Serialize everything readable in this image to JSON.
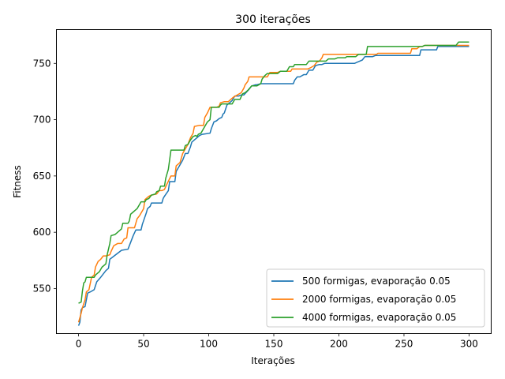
{
  "chart_data": {
    "type": "line",
    "title": "300 iterações",
    "xlabel": "Iterações",
    "ylabel": "Fitness",
    "xlim": [
      -17,
      317
    ],
    "ylim": [
      510,
      780
    ],
    "xticks": [
      0,
      50,
      100,
      150,
      200,
      250,
      300
    ],
    "yticks": [
      550,
      600,
      650,
      700,
      750
    ],
    "grid": false,
    "legend_position": "lower-right",
    "series": [
      {
        "name": "500 formigas, evaporação 0.05",
        "color": "#1f77b4",
        "points": [
          [
            0,
            517
          ],
          [
            1,
            520
          ],
          [
            2,
            531
          ],
          [
            3,
            533
          ],
          [
            5,
            534
          ],
          [
            6,
            540
          ],
          [
            7,
            546
          ],
          [
            9,
            547
          ],
          [
            12,
            549
          ],
          [
            14,
            556
          ],
          [
            17,
            560
          ],
          [
            19,
            563
          ],
          [
            21,
            566
          ],
          [
            23,
            568
          ],
          [
            24,
            576
          ],
          [
            33,
            584
          ],
          [
            38,
            585
          ],
          [
            42,
            597
          ],
          [
            44,
            602
          ],
          [
            48,
            602
          ],
          [
            49,
            607
          ],
          [
            52,
            617
          ],
          [
            53,
            621
          ],
          [
            55,
            623
          ],
          [
            56,
            626
          ],
          [
            64,
            626
          ],
          [
            65,
            630
          ],
          [
            66,
            632
          ],
          [
            69,
            637
          ],
          [
            70,
            645
          ],
          [
            74,
            645
          ],
          [
            75,
            654
          ],
          [
            78,
            660
          ],
          [
            80,
            664
          ],
          [
            82,
            670
          ],
          [
            84,
            670
          ],
          [
            86,
            676
          ],
          [
            87,
            680
          ],
          [
            89,
            682
          ],
          [
            91,
            684
          ],
          [
            93,
            686
          ],
          [
            95,
            687
          ],
          [
            101,
            688
          ],
          [
            102,
            692
          ],
          [
            104,
            698
          ],
          [
            106,
            699
          ],
          [
            108,
            701
          ],
          [
            110,
            702
          ],
          [
            111,
            705
          ],
          [
            112,
            706
          ],
          [
            114,
            713
          ],
          [
            116,
            715
          ],
          [
            118,
            717
          ],
          [
            120,
            721
          ],
          [
            123,
            721
          ],
          [
            125,
            722
          ],
          [
            127,
            722
          ],
          [
            131,
            727
          ],
          [
            133,
            730
          ],
          [
            136,
            731
          ],
          [
            137,
            731
          ],
          [
            140,
            732
          ],
          [
            165,
            732
          ],
          [
            166,
            735
          ],
          [
            168,
            738
          ],
          [
            170,
            738
          ],
          [
            173,
            740
          ],
          [
            175,
            740
          ],
          [
            177,
            744
          ],
          [
            180,
            744
          ],
          [
            182,
            748
          ],
          [
            185,
            749
          ],
          [
            187,
            749
          ],
          [
            189,
            750
          ],
          [
            212,
            750
          ],
          [
            214,
            751
          ],
          [
            216,
            752
          ],
          [
            218,
            753
          ],
          [
            220,
            756
          ],
          [
            226,
            756
          ],
          [
            228,
            757
          ],
          [
            262,
            757
          ],
          [
            263,
            762
          ],
          [
            275,
            762
          ],
          [
            276,
            765
          ],
          [
            293,
            765
          ],
          [
            295,
            765
          ],
          [
            300,
            765
          ]
        ]
      },
      {
        "name": "2000 formigas, evaporação 0.05",
        "color": "#ff7f0e",
        "points": [
          [
            0,
            520
          ],
          [
            1,
            524
          ],
          [
            2,
            528
          ],
          [
            3,
            533
          ],
          [
            5,
            540
          ],
          [
            6,
            547
          ],
          [
            8,
            549
          ],
          [
            10,
            560
          ],
          [
            12,
            562
          ],
          [
            13,
            569
          ],
          [
            15,
            574
          ],
          [
            17,
            576
          ],
          [
            19,
            579
          ],
          [
            21,
            579
          ],
          [
            24,
            580
          ],
          [
            25,
            583
          ],
          [
            27,
            588
          ],
          [
            30,
            590
          ],
          [
            33,
            590
          ],
          [
            35,
            594
          ],
          [
            37,
            595
          ],
          [
            38,
            604
          ],
          [
            43,
            604
          ],
          [
            45,
            612
          ],
          [
            47,
            615
          ],
          [
            50,
            621
          ],
          [
            51,
            629
          ],
          [
            54,
            632
          ],
          [
            56,
            633
          ],
          [
            60,
            634
          ],
          [
            62,
            637
          ],
          [
            64,
            637
          ],
          [
            66,
            638
          ],
          [
            68,
            643
          ],
          [
            71,
            650
          ],
          [
            74,
            650
          ],
          [
            75,
            659
          ],
          [
            78,
            662
          ],
          [
            80,
            670
          ],
          [
            84,
            678
          ],
          [
            86,
            684
          ],
          [
            88,
            688
          ],
          [
            89,
            694
          ],
          [
            93,
            695
          ],
          [
            96,
            695
          ],
          [
            97,
            702
          ],
          [
            99,
            706
          ],
          [
            101,
            711
          ],
          [
            106,
            711
          ],
          [
            108,
            712
          ],
          [
            109,
            715
          ],
          [
            112,
            716
          ],
          [
            115,
            716
          ],
          [
            118,
            719
          ],
          [
            119,
            720
          ],
          [
            125,
            724
          ],
          [
            127,
            728
          ],
          [
            128,
            731
          ],
          [
            130,
            734
          ],
          [
            131,
            738
          ],
          [
            145,
            738
          ],
          [
            147,
            742
          ],
          [
            153,
            742
          ],
          [
            155,
            743
          ],
          [
            163,
            743
          ],
          [
            164,
            745
          ],
          [
            176,
            745
          ],
          [
            178,
            746
          ],
          [
            181,
            748
          ],
          [
            183,
            751
          ],
          [
            185,
            752
          ],
          [
            187,
            755
          ],
          [
            188,
            758
          ],
          [
            229,
            758
          ],
          [
            230,
            759
          ],
          [
            255,
            759
          ],
          [
            256,
            763
          ],
          [
            260,
            763
          ],
          [
            262,
            765
          ],
          [
            264,
            765
          ],
          [
            266,
            766
          ],
          [
            300,
            766
          ]
        ]
      },
      {
        "name": "4000 formigas, evaporação 0.05",
        "color": "#2ca02c",
        "points": [
          [
            0,
            537
          ],
          [
            2,
            538
          ],
          [
            3,
            548
          ],
          [
            4,
            555
          ],
          [
            5,
            556
          ],
          [
            6,
            560
          ],
          [
            12,
            560
          ],
          [
            13,
            562
          ],
          [
            16,
            565
          ],
          [
            18,
            569
          ],
          [
            20,
            571
          ],
          [
            21,
            572
          ],
          [
            22,
            580
          ],
          [
            23,
            585
          ],
          [
            24,
            590
          ],
          [
            25,
            597
          ],
          [
            28,
            598
          ],
          [
            30,
            600
          ],
          [
            32,
            602
          ],
          [
            33,
            603
          ],
          [
            34,
            608
          ],
          [
            38,
            608
          ],
          [
            39,
            610
          ],
          [
            40,
            616
          ],
          [
            42,
            618
          ],
          [
            43,
            619
          ],
          [
            45,
            621
          ],
          [
            48,
            627
          ],
          [
            51,
            627
          ],
          [
            52,
            629
          ],
          [
            54,
            630
          ],
          [
            56,
            633
          ],
          [
            59,
            634
          ],
          [
            60,
            636
          ],
          [
            62,
            637
          ],
          [
            63,
            641
          ],
          [
            66,
            641
          ],
          [
            67,
            648
          ],
          [
            69,
            656
          ],
          [
            71,
            673
          ],
          [
            81,
            673
          ],
          [
            82,
            677
          ],
          [
            84,
            678
          ],
          [
            86,
            682
          ],
          [
            88,
            685
          ],
          [
            90,
            686
          ],
          [
            91,
            685
          ],
          [
            92,
            687
          ],
          [
            94,
            688
          ],
          [
            98,
            696
          ],
          [
            99,
            698
          ],
          [
            101,
            700
          ],
          [
            102,
            711
          ],
          [
            108,
            711
          ],
          [
            109,
            713
          ],
          [
            110,
            714
          ],
          [
            118,
            714
          ],
          [
            120,
            718
          ],
          [
            124,
            718
          ],
          [
            126,
            723
          ],
          [
            128,
            724
          ],
          [
            130,
            726
          ],
          [
            133,
            730
          ],
          [
            137,
            730
          ],
          [
            140,
            732
          ],
          [
            141,
            736
          ],
          [
            143,
            739
          ],
          [
            145,
            741
          ],
          [
            153,
            741
          ],
          [
            155,
            743
          ],
          [
            160,
            743
          ],
          [
            162,
            747
          ],
          [
            165,
            747
          ],
          [
            166,
            749
          ],
          [
            175,
            749
          ],
          [
            177,
            752
          ],
          [
            190,
            752
          ],
          [
            192,
            754
          ],
          [
            197,
            754
          ],
          [
            199,
            755
          ],
          [
            205,
            755
          ],
          [
            206,
            756
          ],
          [
            213,
            756
          ],
          [
            215,
            758
          ],
          [
            221,
            758
          ],
          [
            222,
            765
          ],
          [
            264,
            765
          ],
          [
            266,
            766
          ],
          [
            290,
            766
          ],
          [
            292,
            769
          ],
          [
            300,
            769
          ]
        ]
      }
    ]
  }
}
